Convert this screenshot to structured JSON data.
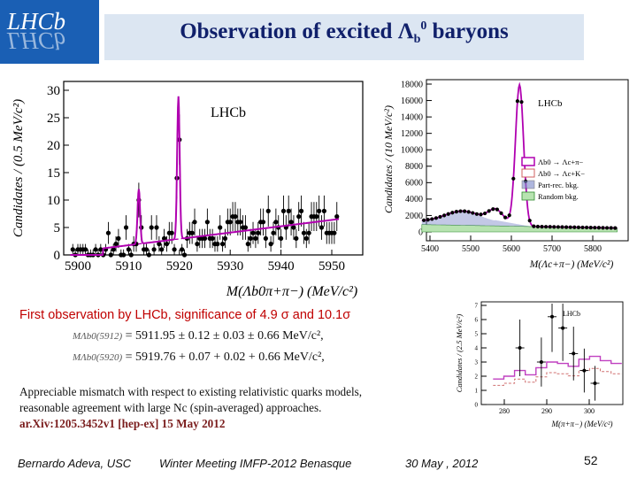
{
  "logo": {
    "top": "LHCb",
    "reflection": "LHCb"
  },
  "title": {
    "text_before": "Observation of excited ",
    "lambda": "Λ",
    "sub": "b",
    "sup": "0",
    "text_after": " baryons"
  },
  "left_plot": {
    "lhcb_label": "LHCb",
    "ylabel": "Candidates / (0.5 MeV/c²)",
    "xlabel": "M(Λb0π+π−) (MeV/c²)",
    "yticks": [
      "0",
      "5",
      "10",
      "15",
      "20",
      "25",
      "30"
    ],
    "xticks": [
      "5900",
      "5910",
      "5920",
      "5930",
      "5940",
      "5950"
    ]
  },
  "right_top_plot": {
    "lhcb_label": "LHCb",
    "ylabel": "Candidates / (10 MeV/c²)",
    "xlabel": "M(Λc+π−) (MeV/c²)",
    "yticks": [
      "0",
      "2000",
      "4000",
      "6000",
      "8000",
      "10000",
      "12000",
      "14000",
      "16000",
      "18000"
    ],
    "xticks": [
      "5400",
      "5500",
      "5600",
      "5700",
      "5800"
    ],
    "legend": [
      "Λb0 → Λc+π−",
      "Λb0 → Λc+K−",
      "Part-rec. bkg.",
      "Random bkg."
    ]
  },
  "right_bottom_plot": {
    "lhcb_label": "LHCb",
    "ylabel": "Candidates / (2.5 MeV/c²)",
    "xlabel": "M(π+π−) (MeV/c²)",
    "xticks": [
      "280",
      "290",
      "300"
    ],
    "yticks": [
      "0",
      "1",
      "2",
      "3",
      "4",
      "5",
      "6",
      "7"
    ]
  },
  "caption": "First observation by LHCb, significance of 4.9 σ and 10.1σ",
  "masses": [
    {
      "label": "MΛb0(5912)",
      "value": "= 5911.95 ± 0.12 ± 0.03 ± 0.66 MeV/c²,"
    },
    {
      "label": "MΛb0(5920)",
      "value": "= 5919.76 + 0.07 + 0.02 + 0.66 MeV/c²,"
    }
  ],
  "paragraph": [
    "Appreciable mismatch with respect to existing relativistic quarks models,",
    "reasonable agreement with large Nc (spin-averaged) approaches."
  ],
  "reference": "ar.Xiv:1205.3452v1 [hep-ex] 15 May 2012",
  "footer": {
    "author": "Bernardo Adeva, USC",
    "meeting": "Winter Meeting IMFP-2012  Benasque",
    "date": "30 May , 2012",
    "page": "52"
  }
}
